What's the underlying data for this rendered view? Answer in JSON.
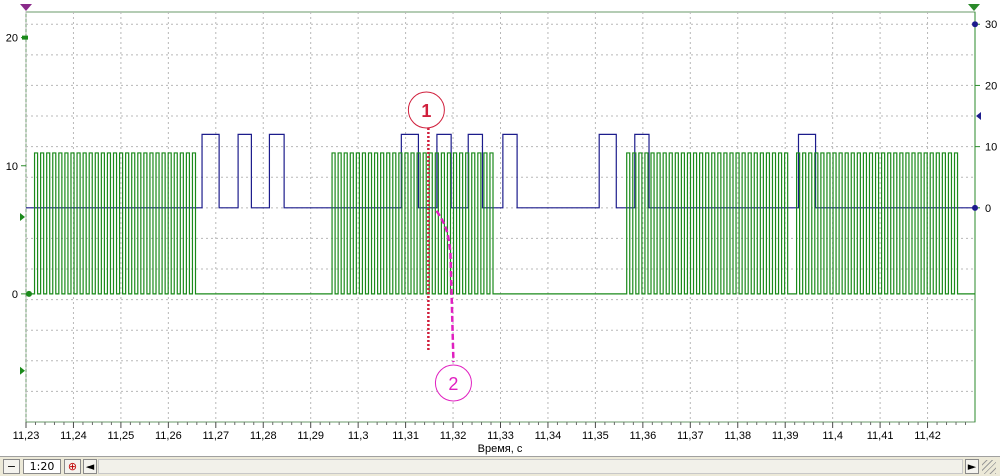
{
  "chart_data": {
    "type": "line",
    "xlabel": "Время, с",
    "x_range": [
      11.23,
      11.43
    ],
    "x_ticks": [
      "11,23",
      "11,24",
      "11,25",
      "11,26",
      "11,27",
      "11,28",
      "11,29",
      "11,3",
      "11,31",
      "11,32",
      "11,33",
      "11,34",
      "11,35",
      "11,36",
      "11,37",
      "11,38",
      "11,39",
      "11,4",
      "11,41",
      "11,42"
    ],
    "right_axis": {
      "range": [
        -35,
        32
      ],
      "ticks": [
        "30",
        "20",
        "10",
        "0"
      ]
    },
    "left_axis": {
      "range": [
        -10,
        22
      ],
      "ticks": [
        "20",
        "10",
        "0"
      ]
    },
    "grid": true,
    "series": [
      {
        "color": "#1c1c8c",
        "axis": "right",
        "low": 0,
        "high": 12,
        "pulses": [
          [
            11.2671,
            11.2707
          ],
          [
            11.2747,
            11.2775
          ],
          [
            11.2813,
            11.2844
          ],
          [
            11.3091,
            11.3127
          ],
          [
            11.3166,
            11.3196
          ],
          [
            11.3232,
            11.3262
          ],
          [
            11.3305,
            11.3335
          ],
          [
            11.3508,
            11.3544
          ],
          [
            11.3583,
            11.3613
          ],
          [
            11.3928,
            11.3964
          ]
        ]
      },
      {
        "color": "#1a8a1a",
        "axis": "left",
        "low": 0,
        "high": 11,
        "bursts": [
          {
            "start": 11.2318,
            "period": 0.00128,
            "duty": 0.5,
            "count": 27
          },
          {
            "start": 11.2945,
            "period": 0.00128,
            "duty": 0.5,
            "count": 27
          },
          {
            "start": 11.3566,
            "period": 0.00128,
            "duty": 0.5,
            "count": 27
          },
          {
            "start": 11.3924,
            "period": 0.00128,
            "duty": 0.5,
            "count": 27
          }
        ]
      }
    ],
    "annotations": [
      {
        "label": "1",
        "x": 11.3148,
        "color": "#d01f3c"
      },
      {
        "label": "2",
        "x": 11.3165,
        "color": "#e020c0"
      }
    ]
  },
  "toolbar": {
    "zoom_out_icon": "minus-circle-icon",
    "zoom_level": "1:20",
    "zoom_in_icon": "plus-circle-icon",
    "scroll_left": "◄",
    "scroll_right": "►"
  }
}
